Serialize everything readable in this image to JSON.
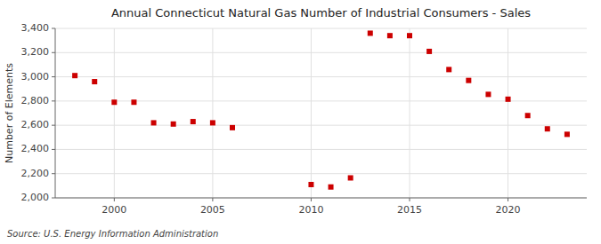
{
  "chart_data": {
    "type": "scatter",
    "title": "Annual Connecticut Natural Gas Number of Industrial Consumers - Sales",
    "y_label": "Number of Elements",
    "annotations": [
      "Source: U.S. Energy Information Administration"
    ],
    "x": [
      1998,
      1999,
      2000,
      2001,
      2002,
      2003,
      2004,
      2005,
      2006,
      2010,
      2011,
      2012,
      2013,
      2014,
      2015,
      2016,
      2017,
      2018,
      2019,
      2020,
      2021,
      2022,
      2023
    ],
    "values": [
      3010,
      2960,
      2790,
      2790,
      2620,
      2610,
      2630,
      2620,
      2580,
      2110,
      2090,
      2165,
      3360,
      3340,
      3340,
      3210,
      3060,
      2970,
      2855,
      2815,
      2680,
      2570,
      2525
    ],
    "color": "#cc0000",
    "marker": "square",
    "xlim": [
      1997,
      2024
    ],
    "xticks": [
      2000,
      2005,
      2010,
      2015,
      2020
    ],
    "ylim": [
      2000,
      3400
    ],
    "yticks": [
      {
        "value": 2000,
        "label": "2,000"
      },
      {
        "value": 2200,
        "label": "2,200"
      },
      {
        "value": 2400,
        "label": "2,400"
      },
      {
        "value": 2600,
        "label": "2,600"
      },
      {
        "value": 2800,
        "label": "2,800"
      },
      {
        "value": 3000,
        "label": "3,000"
      },
      {
        "value": 3200,
        "label": "3,200"
      },
      {
        "value": 3400,
        "label": "3,400"
      }
    ],
    "grid": true
  }
}
